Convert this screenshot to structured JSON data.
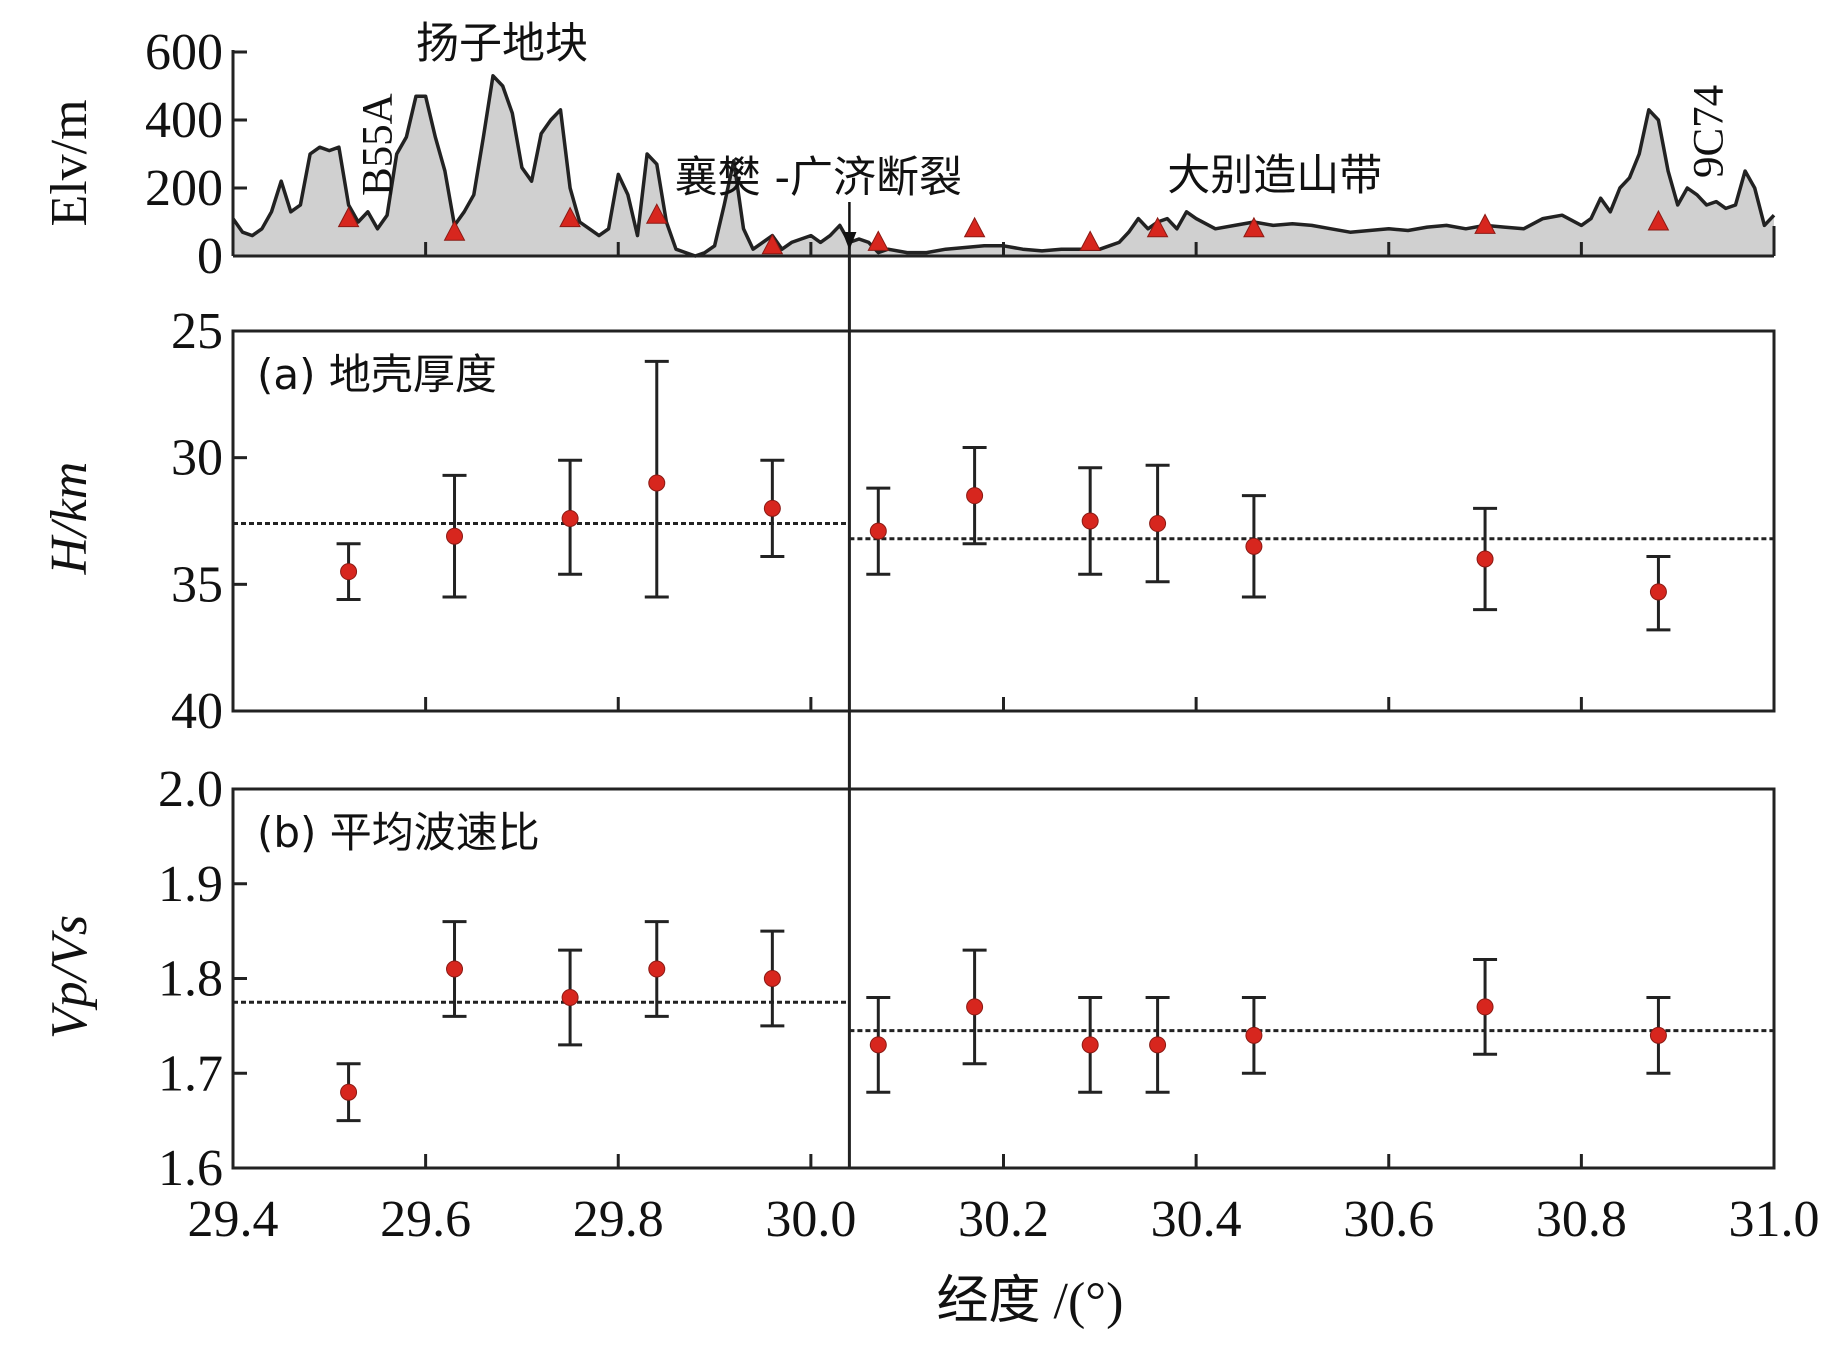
{
  "chart_data": {
    "x_axis": {
      "xlabel": "经度 /(°)",
      "xlim": [
        29.4,
        31.0
      ],
      "ticks": [
        "29.4",
        "29.6",
        "29.8",
        "30.0",
        "30.2",
        "30.4",
        "30.6",
        "30.8",
        "31.0"
      ]
    },
    "fault": {
      "label": "襄樊 -广济断裂",
      "x": 30.04
    },
    "panels": [
      {
        "id": "elevation",
        "type": "area",
        "ylabel": "Elv/m",
        "ylim": [
          0,
          600
        ],
        "yticks": [
          "0",
          "200",
          "400",
          "600"
        ],
        "annotations": [
          {
            "text": "扬子地块",
            "x": 29.64,
            "y": 640
          },
          {
            "text": "大别造山带",
            "x": 30.5,
            "y": 220
          }
        ],
        "station_labels": [
          {
            "text": "B55A",
            "x": 29.53,
            "y": 120
          },
          {
            "text": "9C74",
            "x": 30.92,
            "y": 190
          }
        ],
        "profile": {
          "x": [
            29.4,
            29.41,
            29.42,
            29.43,
            29.44,
            29.45,
            29.46,
            29.47,
            29.48,
            29.49,
            29.5,
            29.51,
            29.52,
            29.53,
            29.54,
            29.55,
            29.56,
            29.57,
            29.58,
            29.59,
            29.6,
            29.61,
            29.62,
            29.63,
            29.64,
            29.65,
            29.66,
            29.67,
            29.68,
            29.69,
            29.7,
            29.71,
            29.72,
            29.73,
            29.74,
            29.75,
            29.76,
            29.77,
            29.78,
            29.79,
            29.8,
            29.81,
            29.82,
            29.83,
            29.84,
            29.85,
            29.86,
            29.87,
            29.88,
            29.89,
            29.9,
            29.91,
            29.92,
            29.93,
            29.94,
            29.95,
            29.96,
            29.97,
            29.98,
            29.99,
            30.0,
            30.01,
            30.02,
            30.03,
            30.04,
            30.05,
            30.06,
            30.07,
            30.08,
            30.1,
            30.12,
            30.14,
            30.16,
            30.18,
            30.2,
            30.22,
            30.24,
            30.26,
            30.28,
            30.3,
            30.31,
            30.32,
            30.33,
            30.34,
            30.35,
            30.36,
            30.37,
            30.38,
            30.39,
            30.4,
            30.42,
            30.44,
            30.46,
            30.48,
            30.5,
            30.52,
            30.54,
            30.56,
            30.58,
            30.6,
            30.62,
            30.64,
            30.66,
            30.68,
            30.7,
            30.72,
            30.74,
            30.76,
            30.78,
            30.8,
            30.81,
            30.82,
            30.83,
            30.84,
            30.85,
            30.86,
            30.87,
            30.88,
            30.89,
            30.9,
            30.91,
            30.92,
            30.93,
            30.94,
            30.95,
            30.96,
            30.97,
            30.98,
            30.99,
            31.0
          ],
          "y": [
            110,
            70,
            60,
            80,
            130,
            220,
            130,
            150,
            300,
            320,
            310,
            320,
            150,
            100,
            130,
            80,
            120,
            300,
            350,
            470,
            470,
            350,
            250,
            90,
            130,
            180,
            350,
            530,
            500,
            420,
            260,
            220,
            360,
            400,
            430,
            200,
            100,
            80,
            60,
            80,
            240,
            180,
            60,
            300,
            270,
            100,
            20,
            10,
            0,
            10,
            30,
            150,
            280,
            80,
            20,
            40,
            60,
            20,
            40,
            50,
            60,
            40,
            60,
            90,
            40,
            50,
            40,
            10,
            20,
            10,
            10,
            20,
            25,
            30,
            30,
            20,
            15,
            20,
            20,
            20,
            30,
            40,
            70,
            110,
            80,
            100,
            110,
            80,
            130,
            110,
            80,
            90,
            100,
            90,
            95,
            90,
            80,
            70,
            75,
            80,
            75,
            85,
            90,
            80,
            90,
            85,
            80,
            110,
            120,
            90,
            110,
            170,
            130,
            200,
            230,
            300,
            430,
            400,
            250,
            150,
            200,
            180,
            150,
            160,
            140,
            150,
            250,
            200,
            90,
            120
          ],
          "fill": "#d0d0d0",
          "line": "#222222"
        },
        "stations": {
          "x": [
            29.52,
            29.63,
            29.75,
            29.84,
            29.96,
            30.07,
            30.17,
            30.29,
            30.36,
            30.46,
            30.7,
            30.88
          ],
          "y": [
            110,
            70,
            110,
            120,
            30,
            40,
            80,
            40,
            80,
            80,
            90,
            100
          ],
          "color": "#d7261e"
        }
      },
      {
        "id": "crust-thickness",
        "type": "scatter",
        "title": "(a) 地壳厚度",
        "ylabel": "H/km",
        "ylim": [
          25,
          40
        ],
        "y_inverted": true,
        "yticks": [
          "25",
          "30",
          "35",
          "40"
        ],
        "points": {
          "x": [
            29.52,
            29.63,
            29.75,
            29.84,
            29.96,
            30.07,
            30.17,
            30.29,
            30.36,
            30.46,
            30.7,
            30.88
          ],
          "y": [
            34.5,
            33.1,
            32.4,
            31.0,
            32.0,
            32.9,
            31.5,
            32.5,
            32.6,
            33.5,
            34.0,
            35.3
          ],
          "err_upper": [
            33.4,
            30.7,
            30.1,
            26.2,
            30.1,
            31.2,
            29.6,
            30.4,
            30.3,
            31.5,
            32.0,
            33.9
          ],
          "err_lower": [
            35.6,
            35.5,
            34.6,
            35.5,
            33.9,
            34.6,
            33.4,
            34.6,
            34.9,
            35.5,
            36.0,
            36.8
          ]
        },
        "mean_lines": [
          {
            "x": [
              29.4,
              30.04
            ],
            "y": 32.6
          },
          {
            "x": [
              30.04,
              31.0
            ],
            "y": 33.2
          }
        ],
        "point_color": "#d7261e"
      },
      {
        "id": "vp-vs-ratio",
        "type": "scatter",
        "title": "(b) 平均波速比",
        "ylabel": "Vp/Vs",
        "ylim": [
          1.6,
          2.0
        ],
        "yticks": [
          "1.6",
          "1.7",
          "1.8",
          "1.9",
          "2.0"
        ],
        "points": {
          "x": [
            29.52,
            29.63,
            29.75,
            29.84,
            29.96,
            30.07,
            30.17,
            30.29,
            30.36,
            30.46,
            30.7,
            30.88
          ],
          "y": [
            1.68,
            1.81,
            1.78,
            1.81,
            1.8,
            1.73,
            1.77,
            1.73,
            1.73,
            1.74,
            1.77,
            1.74
          ],
          "err_upper": [
            1.71,
            1.86,
            1.83,
            1.86,
            1.85,
            1.78,
            1.83,
            1.78,
            1.78,
            1.78,
            1.82,
            1.78
          ],
          "err_lower": [
            1.65,
            1.76,
            1.73,
            1.76,
            1.75,
            1.68,
            1.71,
            1.68,
            1.68,
            1.7,
            1.72,
            1.7
          ]
        },
        "mean_lines": [
          {
            "x": [
              29.4,
              30.04
            ],
            "y": 1.775
          },
          {
            "x": [
              30.04,
              31.0
            ],
            "y": 1.745
          }
        ],
        "point_color": "#d7261e"
      }
    ]
  }
}
